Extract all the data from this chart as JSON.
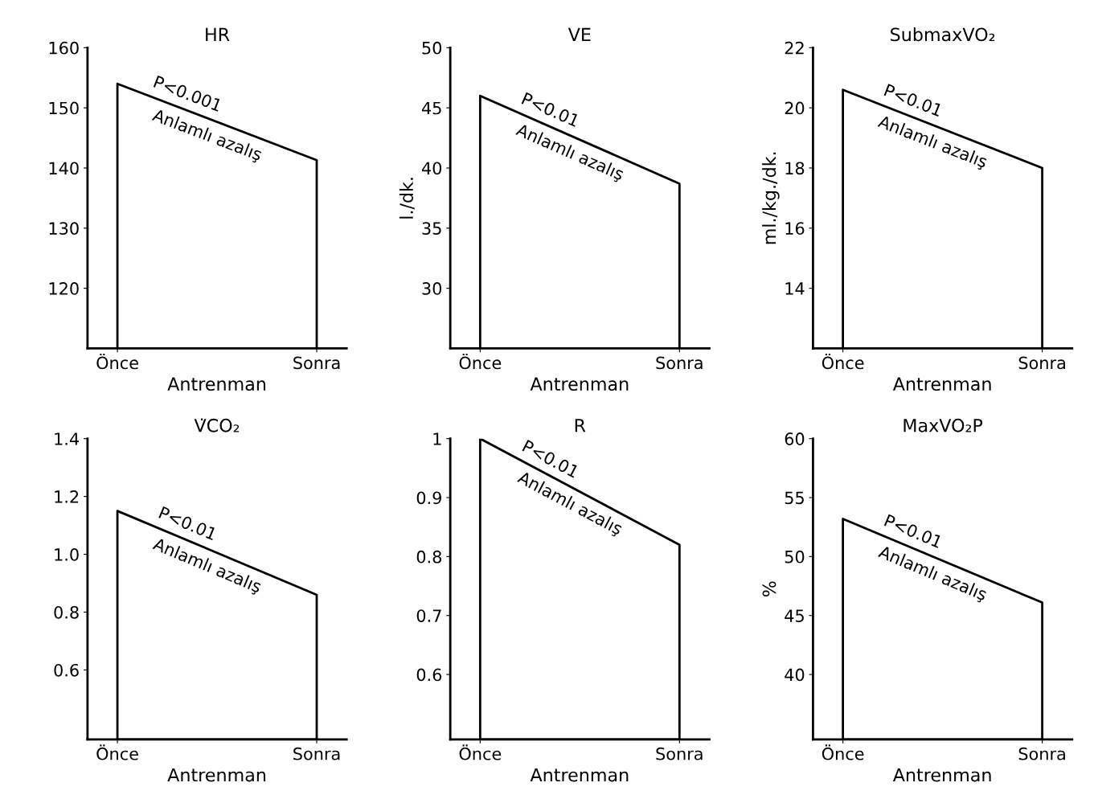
{
  "chart_data": [
    {
      "type": "area",
      "title": "HR",
      "xlabel": "Antrenman",
      "categories": [
        "Önce",
        "Sonra"
      ],
      "series": [
        {
          "color": "#000000",
          "values": [
            154,
            141.3
          ]
        }
      ],
      "ylim": [
        110,
        160
      ],
      "yticks": [
        120,
        130,
        140,
        150,
        160
      ],
      "annotations": [
        "P<0.001",
        "Anlamlı azalış"
      ],
      "grid": false,
      "legend": false
    },
    {
      "type": "area",
      "title": "VE",
      "xlabel": "Antrenman",
      "ylabel": "l./dk.",
      "categories": [
        "Önce",
        "Sonra"
      ],
      "series": [
        {
          "color": "#000000",
          "values": [
            46,
            38.7
          ]
        }
      ],
      "ylim": [
        25,
        50
      ],
      "yticks": [
        30,
        35,
        40,
        45,
        50
      ],
      "annotations": [
        "P<0.01",
        "Anlamlı azalış"
      ],
      "grid": false,
      "legend": false
    },
    {
      "type": "area",
      "title": "SubmaxVO₂",
      "xlabel": "Antrenman",
      "ylabel": "ml./kg./dk.",
      "categories": [
        "Önce",
        "Sonra"
      ],
      "series": [
        {
          "color": "#000000",
          "values": [
            20.6,
            18
          ]
        }
      ],
      "ylim": [
        12,
        22
      ],
      "yticks": [
        14,
        16,
        18,
        20,
        22
      ],
      "annotations": [
        "P<0.01",
        "Anlamlı azalış"
      ],
      "grid": false,
      "legend": false
    },
    {
      "type": "area",
      "title": "V̇CO₂",
      "xlabel": "Antrenman",
      "categories": [
        "Önce",
        "Sonra"
      ],
      "series": [
        {
          "color": "#000000",
          "values": [
            1.15,
            0.86
          ]
        }
      ],
      "ylim": [
        0.36,
        1.4
      ],
      "yticks": [
        {
          "value": 0.6,
          "label": "0.6"
        },
        {
          "value": 0.8,
          "label": "0.8"
        },
        {
          "value": 1.0,
          "label": "1.0"
        },
        {
          "value": 1.2,
          "label": "1.2"
        },
        {
          "value": 1.4,
          "label": "1.4"
        }
      ],
      "annotations": [
        "P<0.01",
        "Anlamlı azalış"
      ],
      "grid": false,
      "legend": false
    },
    {
      "type": "area",
      "title": "R",
      "xlabel": "Antrenman",
      "categories": [
        "Önce",
        "Sonra"
      ],
      "series": [
        {
          "color": "#000000",
          "values": [
            1.0,
            0.82
          ]
        }
      ],
      "ylim": [
        0.49,
        1.0
      ],
      "yticks": [
        0.6,
        0.7,
        0.8,
        0.9,
        1
      ],
      "annotations": [
        "P<0.01",
        "Anlamlı azalış"
      ],
      "grid": false,
      "legend": false
    },
    {
      "type": "area",
      "title": "MaxVO₂P",
      "xlabel": "Antrenman",
      "ylabel": "%",
      "categories": [
        "Önce",
        "Sonra"
      ],
      "series": [
        {
          "color": "#000000",
          "values": [
            53.2,
            46.1
          ]
        }
      ],
      "ylim": [
        34.5,
        60
      ],
      "yticks": [
        40,
        45,
        50,
        55,
        60
      ],
      "annotations": [
        "P<0.01",
        "Anlamlı azalış"
      ],
      "grid": false,
      "legend": false
    }
  ]
}
